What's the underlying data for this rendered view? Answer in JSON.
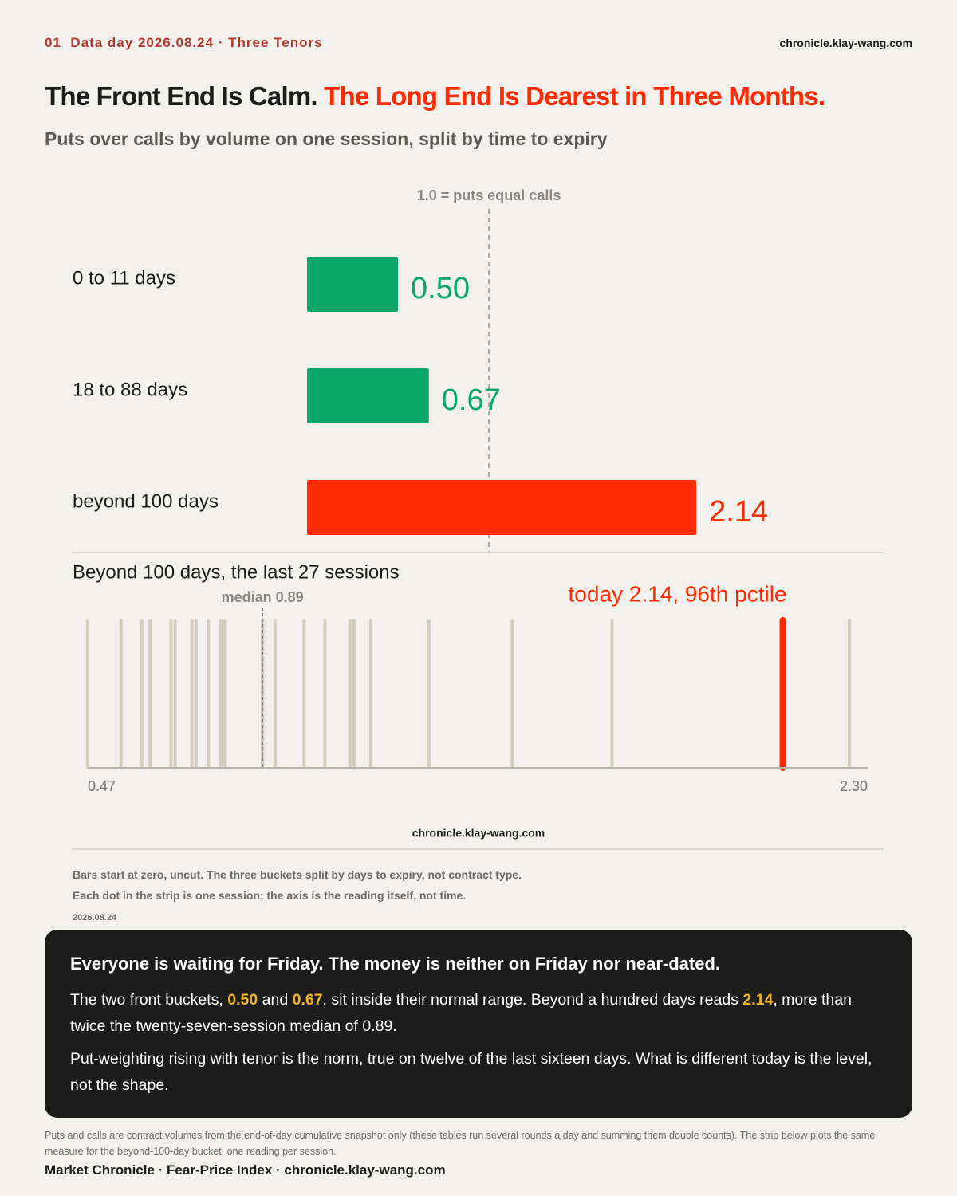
{
  "header": {
    "kicker": "01  Data day 2026.08.24 · Three Tenors",
    "site": "chronicle.klay-wang.com"
  },
  "title": {
    "lead": "The Front End Is Calm.",
    "accent": "The Long End Is Dearest in Three Months."
  },
  "subtitle": "Puts over calls by volume on one session, split by time to expiry",
  "chart_data": [
    {
      "type": "hbar",
      "categories": [
        "0 to 11 days",
        "18 to 88 days",
        "beyond 100 days"
      ],
      "values": [
        0.5,
        0.67,
        2.14
      ],
      "value_labels": [
        "0.50",
        "0.67",
        "2.14"
      ],
      "colors": [
        "#0aa86b",
        "#0aa86b",
        "#ff2a00"
      ],
      "xlim": [
        0,
        3.17
      ],
      "reference": {
        "value": 1.0,
        "label": "1.0 = puts equal calls"
      }
    },
    {
      "type": "strip",
      "title": "Beyond 100 days, the last 27 sessions",
      "values": [
        0.47,
        0.55,
        0.6,
        0.62,
        0.67,
        0.68,
        0.72,
        0.73,
        0.73,
        0.76,
        0.79,
        0.8,
        0.8,
        0.89,
        0.89,
        0.92,
        0.99,
        1.04,
        1.1,
        1.11,
        1.11,
        1.15,
        1.29,
        1.49,
        1.73,
        2.14,
        2.3
      ],
      "color": "#d3cdc0",
      "xlim": [
        0.47,
        2.3
      ],
      "xticks": [
        0.47,
        {
          "value": 2.3,
          "label": "2.30"
        }
      ],
      "median": {
        "value": 0.89,
        "label": "median 0.89"
      },
      "highlight": {
        "value": 2.14,
        "color": "#ff2a00",
        "label": "today 2.14, 96th pctile"
      }
    }
  ],
  "source": "chronicle.klay-wang.com",
  "notes": [
    "Bars start at zero, uncut. The three buckets split by days to expiry, not contract type.",
    "Each dot in the strip is one session; the axis is the reading itself, not time.",
    "2026.08.24"
  ],
  "callout": {
    "heading": "Everyone is waiting for Friday. The money is neither on Friday nor near-dated.",
    "paragraphs": [
      [
        "The two front buckets, ",
        "0.50",
        " and ",
        "0.67",
        ", sit inside their normal range. Beyond a hundred days reads ",
        "2.14",
        ", more than twice the twenty-seven-session median of 0.89."
      ],
      [
        "Put-weighting rising with tenor is the norm, true on twelve of the last sixteen days. What is different today is the level, not the shape."
      ]
    ]
  },
  "footer": {
    "note": "Puts and calls are contract volumes from the end-of-day cumulative snapshot only (these tables run several rounds a day and summing them double counts). The strip below plots the same measure for the beyond-100-day bucket, one reading per session.",
    "credit": "Market Chronicle · Fear-Price Index · chronicle.klay-wang.com"
  }
}
